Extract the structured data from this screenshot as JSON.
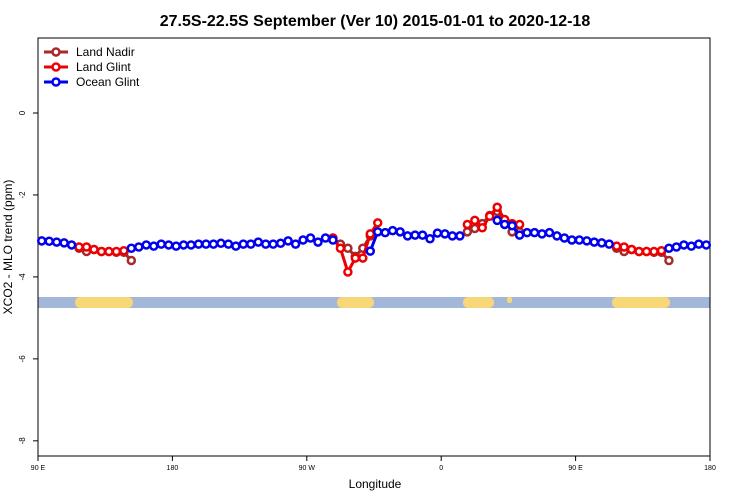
{
  "chart_data": {
    "type": "line",
    "title": "27.5S-22.5S September (Ver 10)   2015-01-01 to 2020-12-18",
    "x_label": "Longitude",
    "y_label": "XCO2 - MLO trend (ppm)",
    "xlim": [
      90,
      540
    ],
    "ylim": [
      -8.37,
      1.83
    ],
    "xticks": [
      {
        "value": 90,
        "label": "90 E"
      },
      {
        "value": 180,
        "label": "180"
      },
      {
        "value": 270,
        "label": "90 W"
      },
      {
        "value": 360,
        "label": "0"
      },
      {
        "value": 450,
        "label": "90 E"
      },
      {
        "value": 540,
        "label": "180"
      }
    ],
    "yticks": [
      0,
      -2,
      -4,
      -6,
      -8
    ],
    "legend": "top-left",
    "x": [
      92.5,
      97.5,
      102.5,
      107.5,
      112.5,
      117.5,
      122.5,
      127.5,
      132.5,
      137.5,
      142.5,
      147.5,
      152.5,
      157.5,
      162.5,
      167.5,
      172.5,
      177.5,
      182.5,
      187.5,
      192.5,
      197.5,
      202.5,
      207.5,
      212.5,
      217.5,
      222.5,
      227.5,
      232.5,
      237.5,
      242.5,
      247.5,
      252.5,
      257.5,
      262.5,
      267.5,
      272.5,
      277.5,
      282.5,
      287.5,
      292.5,
      297.5,
      302.5,
      307.5,
      312.5,
      317.5,
      322.5,
      327.5,
      332.5,
      337.5,
      342.5,
      347.5,
      352.5,
      357.5,
      362.5,
      367.5,
      372.5,
      377.5,
      382.5,
      387.5,
      392.5,
      397.5,
      402.5,
      407.5,
      412.5,
      417.5,
      422.5,
      427.5,
      432.5,
      437.5,
      442.5,
      447.5,
      452.5,
      457.5,
      462.5,
      467.5,
      472.5,
      477.5,
      482.5,
      487.5,
      492.5,
      497.5,
      502.5,
      507.5,
      512.5,
      517.5,
      522.5,
      527.5,
      532.5,
      537.5
    ],
    "series": [
      {
        "name": "Land Nadir",
        "color": "#a52a2a",
        "values": [
          null,
          null,
          null,
          null,
          null,
          -3.3,
          -3.38,
          -3.33,
          -3.38,
          -3.38,
          -3.4,
          -3.4,
          -3.6,
          null,
          null,
          null,
          null,
          null,
          null,
          null,
          null,
          null,
          null,
          null,
          null,
          null,
          null,
          null,
          null,
          null,
          null,
          null,
          null,
          null,
          null,
          null,
          null,
          null,
          null,
          -3.05,
          -3.2,
          -3.3,
          -3.5,
          -3.3,
          -3.0,
          null,
          null,
          null,
          null,
          null,
          null,
          null,
          null,
          null,
          null,
          null,
          null,
          -2.9,
          -2.82,
          -2.7,
          -2.5,
          -2.4,
          -2.62,
          -2.9,
          -2.9,
          null,
          null,
          null,
          null,
          null,
          null,
          null,
          null,
          null,
          null,
          null,
          null,
          -3.3,
          -3.38,
          -3.33,
          -3.38,
          -3.38,
          -3.4,
          -3.4,
          -3.6,
          null,
          null,
          null,
          null,
          null
        ]
      },
      {
        "name": "Land Glint",
        "color": "#ee0000",
        "values": [
          null,
          null,
          null,
          null,
          null,
          -3.27,
          -3.27,
          -3.33,
          -3.38,
          -3.38,
          -3.38,
          -3.36,
          null,
          null,
          null,
          null,
          null,
          null,
          null,
          null,
          null,
          null,
          null,
          null,
          null,
          null,
          null,
          null,
          null,
          null,
          null,
          null,
          null,
          null,
          null,
          null,
          null,
          null,
          null,
          -3.05,
          -3.3,
          -3.88,
          -3.54,
          -3.54,
          -2.95,
          -2.68,
          null,
          null,
          null,
          null,
          null,
          null,
          null,
          null,
          null,
          null,
          null,
          -2.72,
          -2.62,
          -2.8,
          -2.52,
          -2.3,
          -2.6,
          -2.7,
          -2.72,
          null,
          null,
          null,
          null,
          null,
          null,
          null,
          null,
          null,
          null,
          null,
          null,
          -3.25,
          -3.27,
          -3.33,
          -3.38,
          -3.38,
          -3.38,
          -3.36,
          null,
          null,
          null,
          null,
          null,
          null
        ]
      },
      {
        "name": "Ocean Glint",
        "color": "#0000ee",
        "values": [
          -3.12,
          -3.13,
          -3.15,
          -3.17,
          -3.22,
          null,
          null,
          null,
          null,
          null,
          null,
          null,
          -3.3,
          -3.27,
          -3.22,
          -3.25,
          -3.2,
          -3.22,
          -3.25,
          -3.22,
          -3.22,
          -3.2,
          -3.2,
          -3.2,
          -3.18,
          -3.2,
          -3.25,
          -3.2,
          -3.2,
          -3.15,
          -3.2,
          -3.2,
          -3.18,
          -3.12,
          -3.2,
          -3.1,
          -3.05,
          -3.15,
          -3.05,
          -3.1,
          null,
          null,
          null,
          null,
          -3.37,
          -2.9,
          -2.92,
          -2.87,
          -2.9,
          -3.0,
          -2.98,
          -2.98,
          -3.07,
          -2.93,
          -2.95,
          -3.0,
          -3.0,
          null,
          null,
          null,
          null,
          -2.62,
          -2.72,
          -2.75,
          -2.98,
          -2.92,
          -2.92,
          -2.95,
          -2.92,
          -3.0,
          -3.05,
          -3.1,
          -3.1,
          -3.12,
          -3.15,
          -3.17,
          -3.2,
          null,
          null,
          null,
          null,
          null,
          null,
          null,
          -3.3,
          -3.27,
          -3.22,
          -3.25,
          -3.2,
          -3.22
        ]
      }
    ]
  }
}
